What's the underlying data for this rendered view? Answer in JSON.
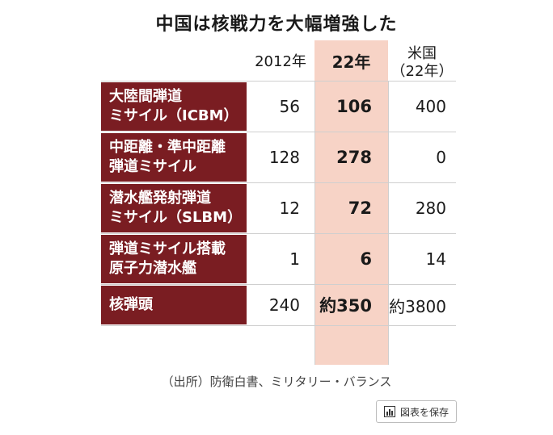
{
  "title": "中国は核戦力を大幅増強した",
  "chart_data": {
    "type": "table",
    "columns": [
      "2012年",
      "22年",
      "米国",
      "（22年）"
    ],
    "series": [
      {
        "name": "2012年",
        "values": [
          56,
          128,
          12,
          1,
          240
        ]
      },
      {
        "name": "22年",
        "values": [
          106,
          278,
          72,
          6,
          350
        ]
      },
      {
        "name": "米国（22年）",
        "values": [
          400,
          0,
          280,
          14,
          3800
        ]
      }
    ],
    "categories": [
      "大陸間弾道ミサイル（ICBM）",
      "中距離・準中距離弾道ミサイル",
      "潜水艦発射弾道ミサイル（SLBM）",
      "弾道ミサイル搭載原子力潜水艦",
      "核弾頭"
    ],
    "rows": [
      {
        "label1": "大陸間弾道",
        "label2": "ミサイル（ICBM）",
        "v2012": "56",
        "v22": "106",
        "us": "400"
      },
      {
        "label1": "中距離・準中距離",
        "label2": "弾道ミサイル",
        "v2012": "128",
        "v22": "278",
        "us": "0"
      },
      {
        "label1": "潜水艦発射弾道",
        "label2": "ミサイル（SLBM）",
        "v2012": "12",
        "v22": "72",
        "us": "280"
      },
      {
        "label1": "弾道ミサイル搭載",
        "label2": "原子力潜水艦",
        "v2012": "1",
        "v22": "6",
        "us": "14"
      },
      {
        "label1": "核弾頭",
        "label2": "",
        "v2012": "240",
        "v22": "約350",
        "us": "約3800"
      }
    ],
    "colors": {
      "label_bg": "#7a1d22",
      "highlight": "#f7d3c6"
    }
  },
  "header": {
    "col_2012": "2012年",
    "col_22": "22年",
    "col_us_line1": "米国",
    "col_us_line2": "（22年）"
  },
  "source": "（出所）防衛白書、ミリタリー・バランス",
  "save_button": {
    "label": "図表を保存",
    "icon": "chart-icon"
  }
}
